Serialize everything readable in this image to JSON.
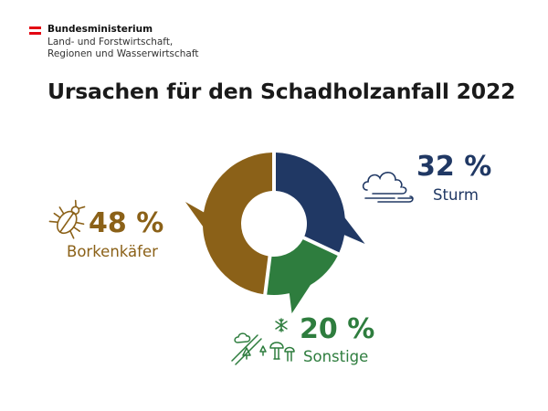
{
  "header": {
    "ministry_line1": "Bundesministerium",
    "ministry_line2": "Land- und Forstwirtschaft,",
    "ministry_line3": "Regionen und Wasserwirtschaft"
  },
  "chart_data": {
    "type": "pie",
    "variant": "donut",
    "title": "Ursachen für den Schadholzanfall 2022",
    "unit": "%",
    "series": [
      {
        "name": "Sturm",
        "value": 32,
        "label": "32 %",
        "color": "#203864",
        "icon": "wind-cloud-icon"
      },
      {
        "name": "Sonstige",
        "value": 20,
        "label": "20 %",
        "color": "#2e7d3e",
        "icon": "snow-forest-mushroom-icon"
      },
      {
        "name": "Borkenkäfer",
        "value": 48,
        "label": "48 %",
        "color": "#8b6118",
        "icon": "bark-beetle-icon"
      }
    ]
  }
}
